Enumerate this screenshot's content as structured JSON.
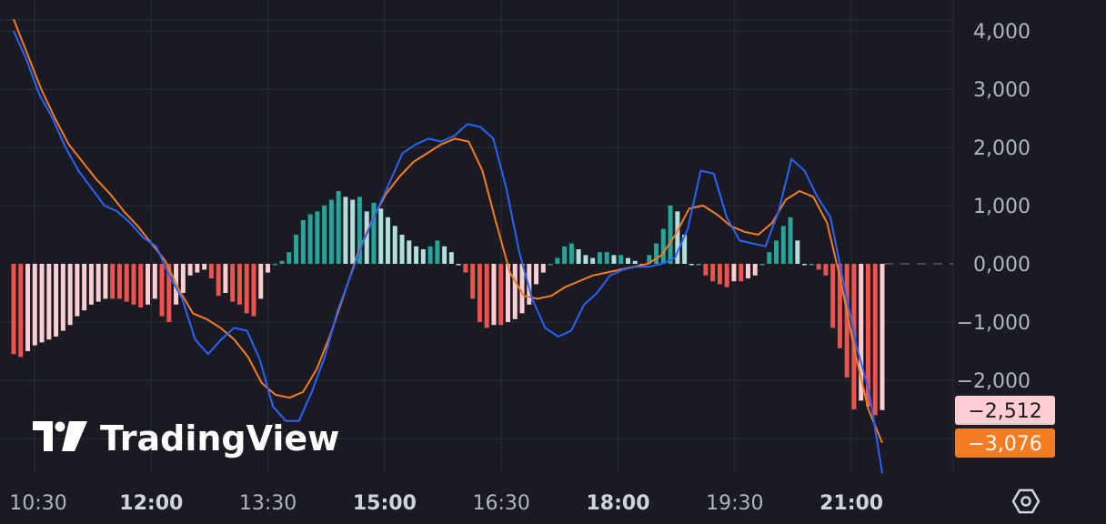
{
  "watermark": {
    "text": "TradingView",
    "icon": "tradingview-logo-icon"
  },
  "settings_icon": "settings-gear-icon",
  "colors": {
    "background": "#1a1b22",
    "grid": "#2a2e39",
    "macd_line": "#2962ff",
    "signal_line": "#f57c22",
    "hist_up_strong": "#26a69a",
    "hist_up_weak": "#b2dfdb",
    "hist_down_strong": "#ef5350",
    "hist_down_weak": "#ffcdd2"
  },
  "badges": [
    {
      "text": "−2,512",
      "bg": "#ffcdd2",
      "fg": "#1a1b22"
    },
    {
      "text": "−3,076",
      "bg": "#f57c22",
      "fg": "#ffffff"
    }
  ],
  "chart_data": {
    "type": "line",
    "title": "",
    "ylim": [
      -3500,
      4300
    ],
    "y_ticks": [
      {
        "value": 4000,
        "label": "4,000"
      },
      {
        "value": 3000,
        "label": "3,000"
      },
      {
        "value": 2000,
        "label": "2,000"
      },
      {
        "value": 1000,
        "label": "1,000"
      },
      {
        "value": 0,
        "label": "0,000"
      },
      {
        "value": -1000,
        "label": "−1,000"
      },
      {
        "value": -2000,
        "label": "−2,000"
      }
    ],
    "x_ticks": [
      {
        "label": "10:30",
        "bold": false
      },
      {
        "label": "12:00",
        "bold": true
      },
      {
        "label": "13:30",
        "bold": false
      },
      {
        "label": "15:00",
        "bold": true
      },
      {
        "label": "16:30",
        "bold": false
      },
      {
        "label": "18:00",
        "bold": true
      },
      {
        "label": "19:30",
        "bold": false
      },
      {
        "label": "21:00",
        "bold": true
      }
    ],
    "grid": true,
    "series": [
      {
        "key": "macd",
        "values": [
          4000,
          3500,
          2900,
          2500,
          2000,
          1600,
          1300,
          1000,
          900,
          700,
          450,
          300,
          -200,
          -600,
          -1300,
          -1550,
          -1300,
          -1100,
          -1150,
          -1650,
          -2450,
          -2700,
          -2700,
          -2200,
          -1600,
          -800,
          -200,
          400,
          900,
          1400,
          1900,
          2050,
          2150,
          2100,
          2200,
          2400,
          2350,
          2150,
          1300,
          200,
          -600,
          -1100,
          -1250,
          -1150,
          -700,
          -500,
          -200,
          -100,
          -50,
          -50,
          0,
          100,
          600,
          1600,
          1550,
          800,
          400,
          350,
          300,
          900,
          1800,
          1600,
          1150,
          800,
          -300,
          -1400,
          -2200,
          -3600
        ]
      },
      {
        "key": "signal",
        "values": [
          4200,
          3600,
          3000,
          2500,
          2050,
          1750,
          1450,
          1200,
          900,
          650,
          350,
          50,
          -450,
          -850,
          -950,
          -1100,
          -1300,
          -1600,
          -2050,
          -2250,
          -2300,
          -2200,
          -1800,
          -1200,
          -500,
          200,
          750,
          1200,
          1500,
          1750,
          1900,
          2050,
          2150,
          2100,
          1600,
          700,
          -150,
          -550,
          -600,
          -550,
          -400,
          -300,
          -200,
          -150,
          -100,
          -50,
          0,
          150,
          500,
          950,
          1000,
          850,
          650,
          550,
          500,
          700,
          1100,
          1250,
          1150,
          700,
          -300,
          -1500,
          -2500,
          -3076
        ]
      },
      {
        "key": "histogram",
        "values": [
          -1550,
          -1600,
          -1500,
          -1400,
          -1350,
          -1300,
          -1250,
          -1150,
          -1050,
          -900,
          -800,
          -700,
          -650,
          -600,
          -600,
          -600,
          -650,
          -700,
          -750,
          -700,
          -600,
          -900,
          -1000,
          -700,
          -500,
          -200,
          -150,
          -100,
          -250,
          -550,
          -500,
          -650,
          -700,
          -850,
          -900,
          -600,
          -150,
          0,
          50,
          200,
          500,
          750,
          850,
          900,
          1000,
          1100,
          1250,
          1150,
          1100,
          1150,
          900,
          1050,
          950,
          800,
          650,
          500,
          400,
          300,
          250,
          300,
          400,
          300,
          200,
          0,
          -150,
          -600,
          -1000,
          -1100,
          -1050,
          -1050,
          -1000,
          -950,
          -850,
          -700,
          -350,
          -150,
          0,
          100,
          300,
          350,
          250,
          150,
          100,
          200,
          200,
          150,
          150,
          100,
          50,
          0,
          150,
          350,
          600,
          1000,
          900,
          500,
          0,
          0,
          -200,
          -300,
          -350,
          -400,
          -300,
          -300,
          -250,
          -200,
          0,
          200,
          400,
          650,
          800,
          400,
          0,
          0,
          -100,
          -200,
          -1100,
          -1450,
          -1950,
          -2500,
          -2350,
          -2450,
          -2600,
          -2512
        ]
      }
    ],
    "last_values": {
      "histogram": -2512,
      "signal": -3076
    }
  }
}
